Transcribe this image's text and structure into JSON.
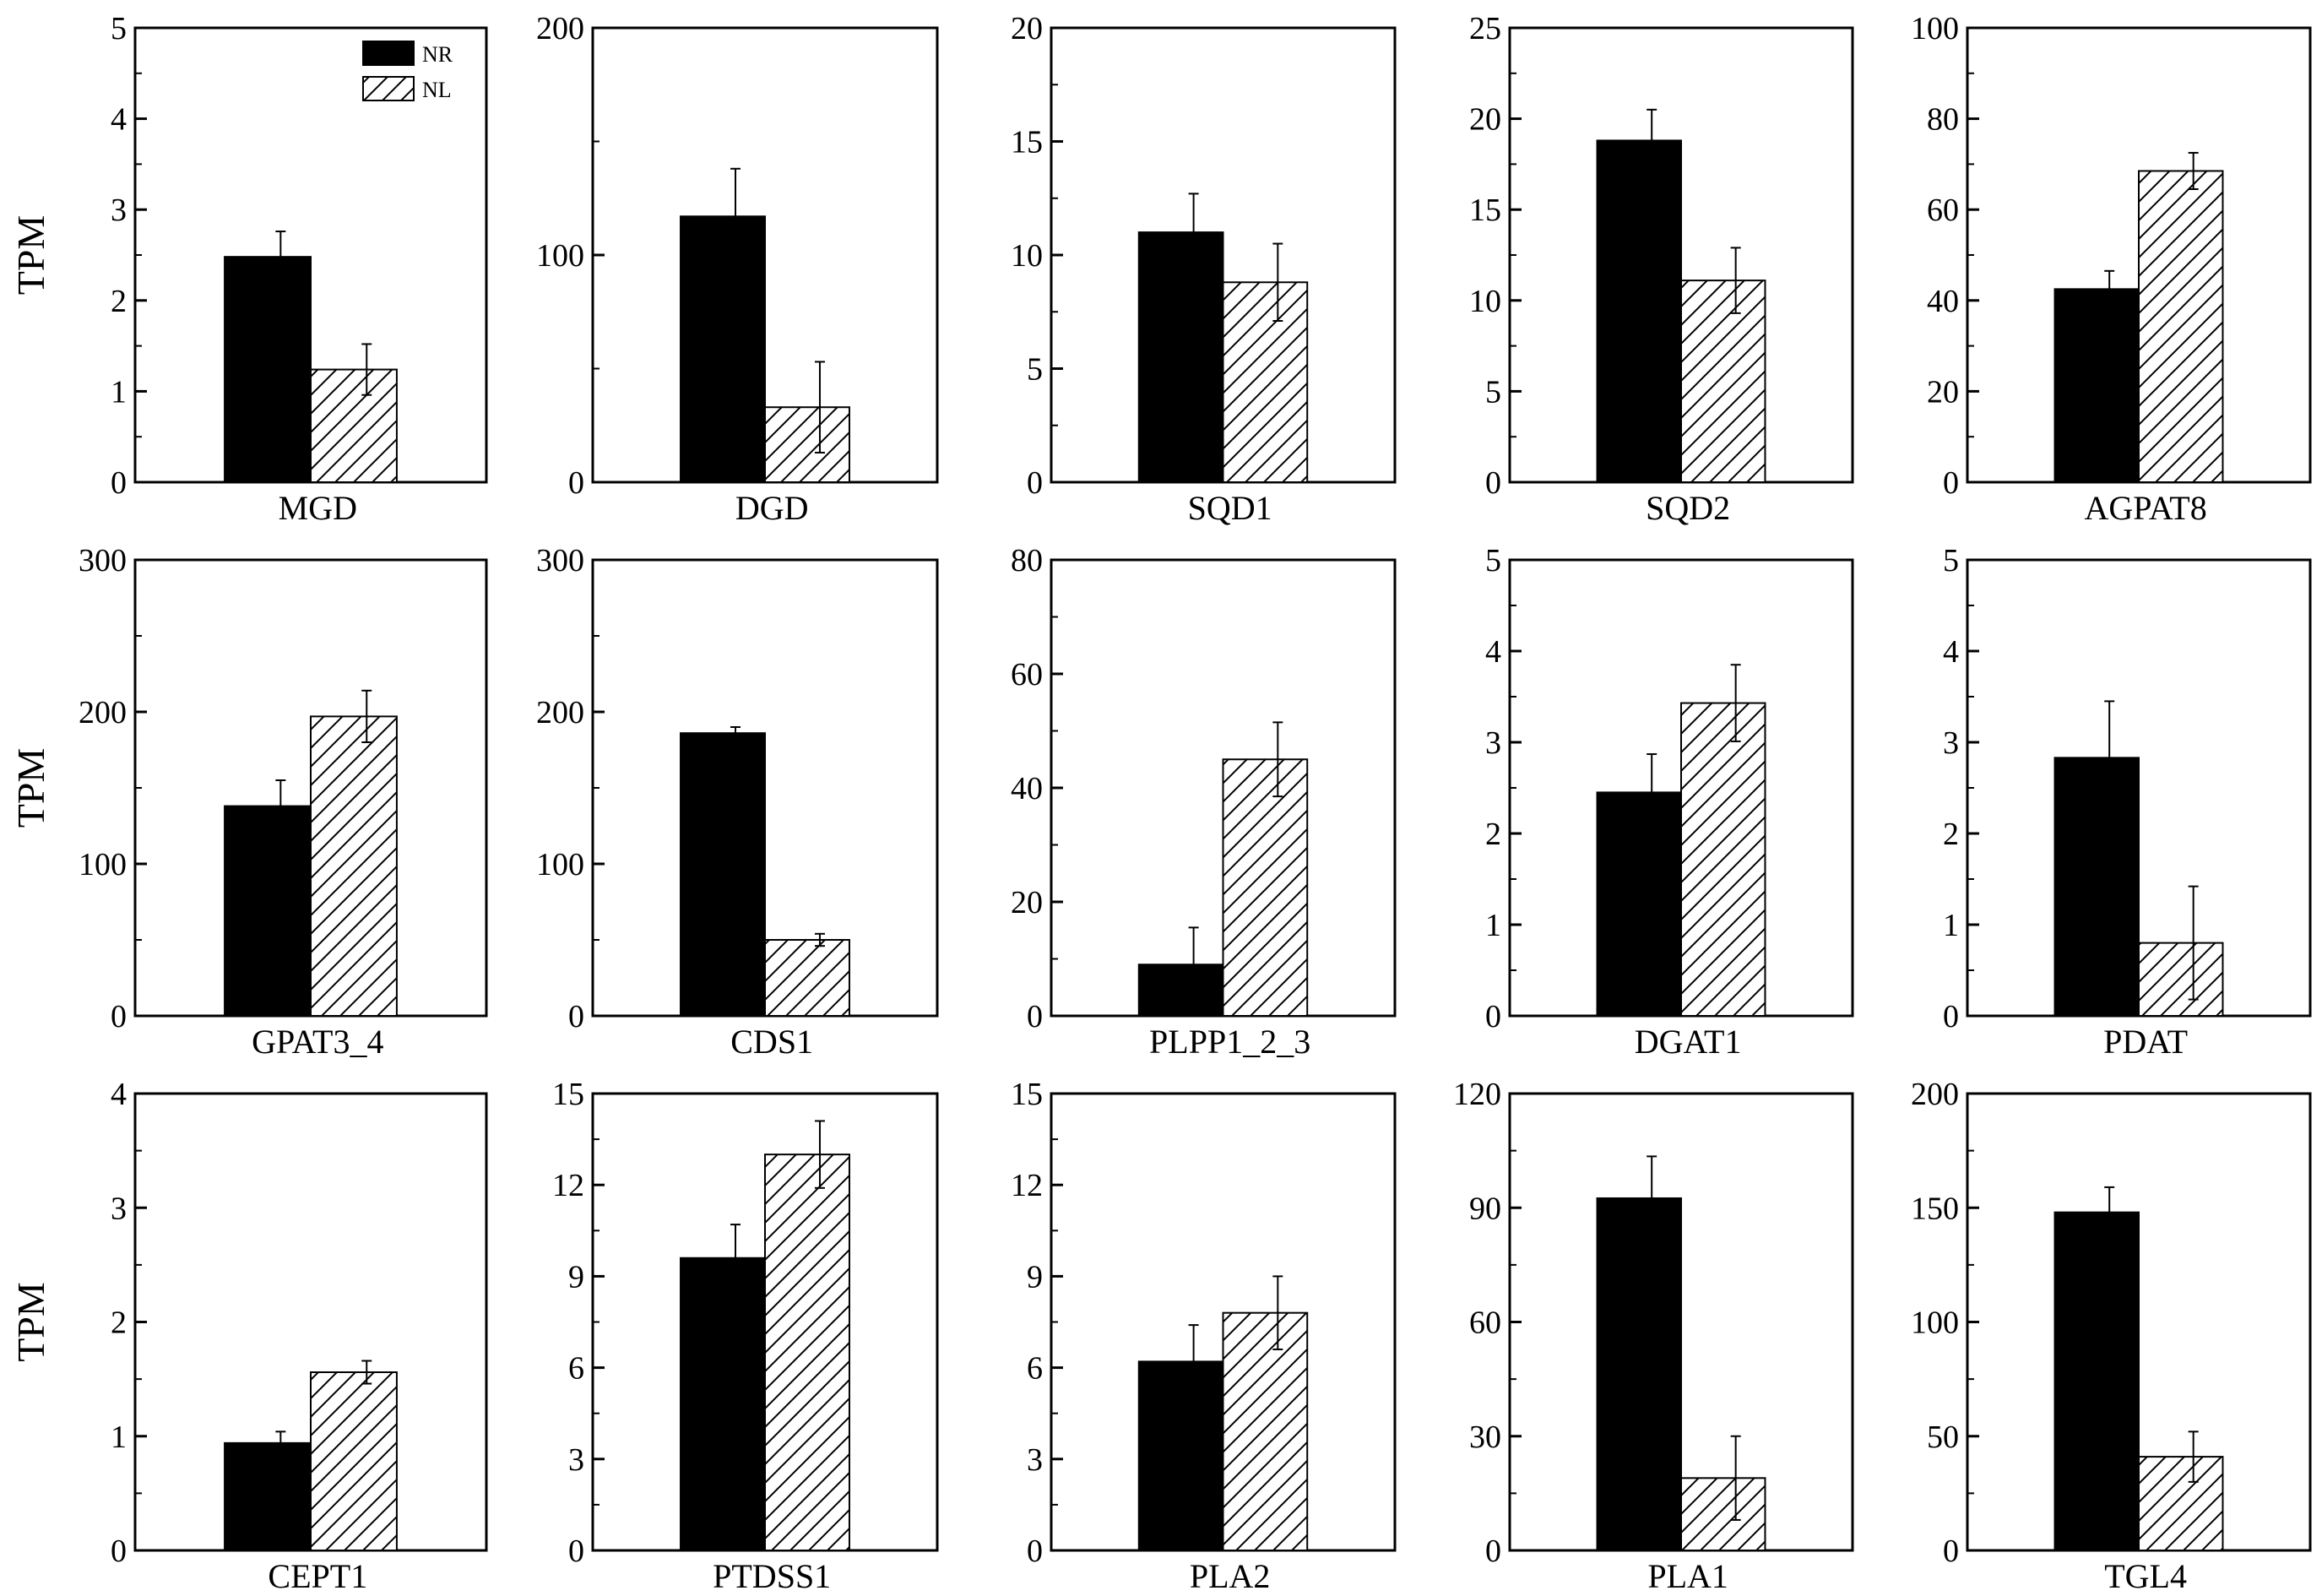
{
  "figure": {
    "y_axis_label": "TPM"
  },
  "legend": [
    {
      "name": "NR",
      "fill": "solid-black"
    },
    {
      "name": "NL",
      "fill": "diagonal-hatch"
    }
  ],
  "colors": {
    "bar_solid": "#000000",
    "background": "#ffffff",
    "axis": "#000000"
  },
  "chart_data": [
    {
      "type": "bar",
      "title": "MGD",
      "xlabel": "MGD",
      "ylabel": "TPM",
      "ylim": [
        0,
        5
      ],
      "yticks": [
        0,
        1,
        2,
        3,
        4,
        5
      ],
      "tick_labels": [
        "0",
        "1",
        "2",
        "3",
        "4",
        "5"
      ],
      "categories": [
        "NR",
        "NL"
      ],
      "values": [
        2.48,
        1.24
      ],
      "errors": [
        0.28,
        0.28
      ]
    },
    {
      "type": "bar",
      "title": "DGD",
      "xlabel": "DGD",
      "ylabel": "",
      "ylim": [
        0,
        200
      ],
      "yticks": [
        0,
        100,
        200
      ],
      "tick_labels": [
        "0",
        "100",
        "200"
      ],
      "categories": [
        "NR",
        "NL"
      ],
      "values": [
        117,
        33
      ],
      "errors": [
        21,
        20
      ]
    },
    {
      "type": "bar",
      "title": "SQD1",
      "xlabel": "SQD1",
      "ylabel": "",
      "ylim": [
        0,
        20
      ],
      "yticks": [
        0,
        5,
        10,
        15,
        20
      ],
      "tick_labels": [
        "0",
        "5",
        "10",
        "15",
        "20"
      ],
      "categories": [
        "NR",
        "NL"
      ],
      "values": [
        11.0,
        8.8
      ],
      "errors": [
        1.7,
        1.7
      ]
    },
    {
      "type": "bar",
      "title": "SQD2",
      "xlabel": "SQD2",
      "ylabel": "",
      "ylim": [
        0,
        25
      ],
      "yticks": [
        0,
        5,
        10,
        15,
        20,
        25
      ],
      "tick_labels": [
        "0",
        "5",
        "10",
        "15",
        "20",
        "25"
      ],
      "categories": [
        "NR",
        "NL"
      ],
      "values": [
        18.8,
        11.1
      ],
      "errors": [
        1.7,
        1.8
      ]
    },
    {
      "type": "bar",
      "title": "AGPAT8",
      "xlabel": "AGPAT8",
      "ylabel": "",
      "ylim": [
        0,
        100
      ],
      "yticks": [
        0,
        20,
        40,
        60,
        80,
        100
      ],
      "tick_labels": [
        "0",
        "20",
        "40",
        "60",
        "80",
        "100"
      ],
      "categories": [
        "NR",
        "NL"
      ],
      "values": [
        42.5,
        68.5
      ],
      "errors": [
        4,
        4
      ]
    },
    {
      "type": "bar",
      "title": "GPAT3_4",
      "xlabel": "GPAT3_4",
      "ylabel": "TPM",
      "ylim": [
        0,
        300
      ],
      "yticks": [
        0,
        100,
        200,
        300
      ],
      "tick_labels": [
        "0",
        "100",
        "200",
        "300"
      ],
      "categories": [
        "NR",
        "NL"
      ],
      "values": [
        138,
        197
      ],
      "errors": [
        17,
        17
      ]
    },
    {
      "type": "bar",
      "title": "CDS1",
      "xlabel": "CDS1",
      "ylabel": "",
      "ylim": [
        0,
        300
      ],
      "yticks": [
        0,
        100,
        200,
        300
      ],
      "tick_labels": [
        "0",
        "100",
        "200",
        "300"
      ],
      "categories": [
        "NR",
        "NL"
      ],
      "values": [
        186,
        50
      ],
      "errors": [
        4,
        4
      ]
    },
    {
      "type": "bar",
      "title": "PLPP1_2_3",
      "xlabel": "PLPP1_2_3",
      "ylabel": "",
      "ylim": [
        0,
        80
      ],
      "yticks": [
        0,
        20,
        40,
        60,
        80
      ],
      "tick_labels": [
        "0",
        "20",
        "40",
        "60",
        "80"
      ],
      "categories": [
        "NR",
        "NL"
      ],
      "values": [
        9,
        45
      ],
      "errors": [
        6.5,
        6.5
      ]
    },
    {
      "type": "bar",
      "title": "DGAT1",
      "xlabel": "DGAT1",
      "ylabel": "",
      "ylim": [
        0,
        5
      ],
      "yticks": [
        0,
        1,
        2,
        3,
        4,
        5
      ],
      "tick_labels": [
        "0",
        "1",
        "2",
        "3",
        "4",
        "5"
      ],
      "categories": [
        "NR",
        "NL"
      ],
      "values": [
        2.45,
        3.43
      ],
      "errors": [
        0.42,
        0.42
      ]
    },
    {
      "type": "bar",
      "title": "PDAT",
      "xlabel": "PDAT",
      "ylabel": "",
      "ylim": [
        0,
        5
      ],
      "yticks": [
        0,
        1,
        2,
        3,
        4,
        5
      ],
      "tick_labels": [
        "0",
        "1",
        "2",
        "3",
        "4",
        "5"
      ],
      "categories": [
        "NR",
        "NL"
      ],
      "values": [
        2.83,
        0.8
      ],
      "errors": [
        0.62,
        0.62
      ]
    },
    {
      "type": "bar",
      "title": "CEPT1",
      "xlabel": "CEPT1",
      "ylabel": "TPM",
      "ylim": [
        0,
        4
      ],
      "yticks": [
        0,
        1,
        2,
        3,
        4
      ],
      "tick_labels": [
        "0",
        "1",
        "2",
        "3",
        "4"
      ],
      "categories": [
        "NR",
        "NL"
      ],
      "values": [
        0.94,
        1.56
      ],
      "errors": [
        0.1,
        0.1
      ]
    },
    {
      "type": "bar",
      "title": "PTDSS1",
      "xlabel": "PTDSS1",
      "ylabel": "",
      "ylim": [
        0,
        15
      ],
      "yticks": [
        0,
        3,
        6,
        9,
        12,
        15
      ],
      "tick_labels": [
        "0",
        "3",
        "6",
        "9",
        "12",
        "15"
      ],
      "categories": [
        "NR",
        "NL"
      ],
      "values": [
        9.6,
        13.0
      ],
      "errors": [
        1.1,
        1.1
      ]
    },
    {
      "type": "bar",
      "title": "PLA2",
      "xlabel": "PLA2",
      "ylabel": "",
      "ylim": [
        0,
        15
      ],
      "yticks": [
        0,
        3,
        6,
        9,
        12,
        15
      ],
      "tick_labels": [
        "0",
        "3",
        "6",
        "9",
        "12",
        "15"
      ],
      "categories": [
        "NR",
        "NL"
      ],
      "values": [
        6.2,
        7.8
      ],
      "errors": [
        1.2,
        1.2
      ]
    },
    {
      "type": "bar",
      "title": "PLA1",
      "xlabel": "PLA1",
      "ylabel": "",
      "ylim": [
        0,
        120
      ],
      "yticks": [
        0,
        30,
        60,
        90,
        120
      ],
      "tick_labels": [
        "0",
        "30",
        "60",
        "90",
        "120"
      ],
      "categories": [
        "NR",
        "NL"
      ],
      "values": [
        92.5,
        19
      ],
      "errors": [
        11,
        11
      ]
    },
    {
      "type": "bar",
      "title": "TGL4",
      "xlabel": "TGL4",
      "ylabel": "",
      "ylim": [
        0,
        200
      ],
      "yticks": [
        0,
        50,
        100,
        150,
        200
      ],
      "tick_labels": [
        "0",
        "50",
        "100",
        "150",
        "200"
      ],
      "categories": [
        "NR",
        "NL"
      ],
      "values": [
        148,
        41
      ],
      "errors": [
        11,
        11
      ]
    }
  ]
}
